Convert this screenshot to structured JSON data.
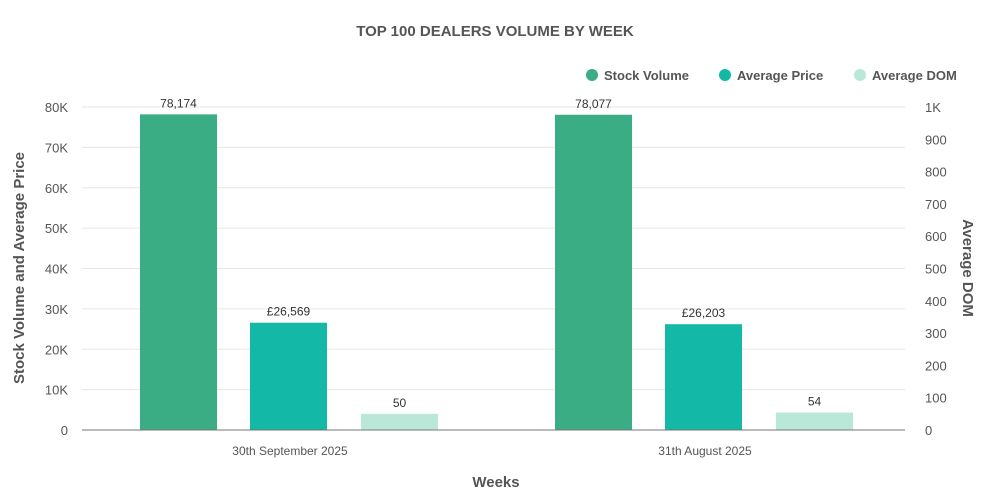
{
  "chart_data": {
    "type": "bar",
    "title": "TOP 100 DEALERS VOLUME BY WEEK",
    "xlabel": "Weeks",
    "ylabel": "Stock Volume and Average Price",
    "y2label": "Average DOM",
    "categories": [
      "30th September 2025",
      "31th August 2025"
    ],
    "ylim": [
      0,
      80000
    ],
    "y2lim": [
      0,
      1000
    ],
    "yticks": [
      "0",
      "10K",
      "20K",
      "30K",
      "40K",
      "50K",
      "60K",
      "70K",
      "80K"
    ],
    "y2ticks": [
      "0",
      "100",
      "200",
      "300",
      "400",
      "500",
      "600",
      "700",
      "800",
      "900",
      "1K"
    ],
    "legend_position": "top-right",
    "grid": true,
    "series": [
      {
        "name": "Stock Volume",
        "axis": "left",
        "color": "#3aad84",
        "values": [
          78174,
          78077
        ],
        "labels": [
          "78,174",
          "78,077"
        ]
      },
      {
        "name": "Average Price",
        "axis": "left",
        "color": "#14b8a6",
        "values": [
          26569,
          26203
        ],
        "labels": [
          "£26,569",
          "£26,203"
        ]
      },
      {
        "name": "Average DOM",
        "axis": "right",
        "color": "#b9e8d9",
        "values": [
          50,
          54
        ],
        "labels": [
          "50",
          "54"
        ]
      }
    ]
  }
}
